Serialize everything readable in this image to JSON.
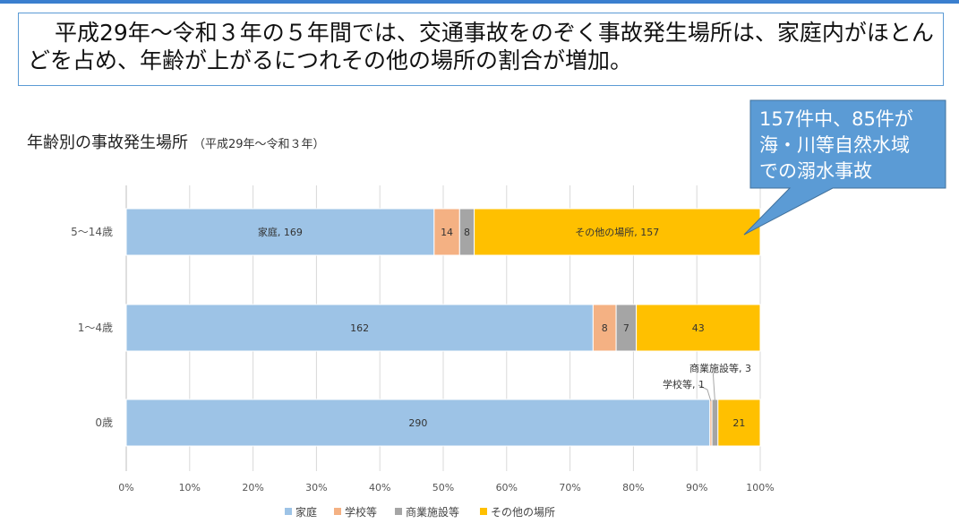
{
  "headline": "平成29年～令和３年の５年間では、交通事故をのぞく事故発生場所は、家庭内がほとんどを占め、年齢が上がるにつれその他の場所の割合が増加。",
  "chart_data": {
    "type": "bar",
    "orientation": "horizontal",
    "stacked": "percent",
    "title": "年齢別の事故発生場所",
    "subtitle": "（平成29年～令和３年）",
    "categories": [
      "5～14歳",
      "1～4歳",
      "0歳"
    ],
    "series": [
      {
        "name": "家庭",
        "color": "#9dc3e6",
        "values": [
          169,
          162,
          290
        ]
      },
      {
        "name": "学校等",
        "color": "#f4b183",
        "values": [
          14,
          8,
          1
        ]
      },
      {
        "name": "商業施設等",
        "color": "#a5a5a5",
        "values": [
          8,
          7,
          3
        ]
      },
      {
        "name": "その他の場所",
        "color": "#ffc000",
        "values": [
          157,
          43,
          21
        ]
      }
    ],
    "segment_labels": [
      [
        "家庭, 169",
        "14",
        "8",
        "その他の場所, 157"
      ],
      [
        "162",
        "8",
        "7",
        "43"
      ],
      [
        "290",
        "",
        "",
        "21"
      ]
    ],
    "leader_labels": [
      "商業施設等, 3",
      "学校等, 1"
    ],
    "x_ticks": [
      "0%",
      "10%",
      "20%",
      "30%",
      "40%",
      "50%",
      "60%",
      "70%",
      "80%",
      "90%",
      "100%"
    ],
    "xlim": [
      0,
      100
    ],
    "legend": "bottom",
    "grid": true
  },
  "callout": {
    "lines": [
      "157件中、85件が",
      "海・川等自然水域",
      "での溺水事故"
    ],
    "fill": "#5b9bd5"
  }
}
